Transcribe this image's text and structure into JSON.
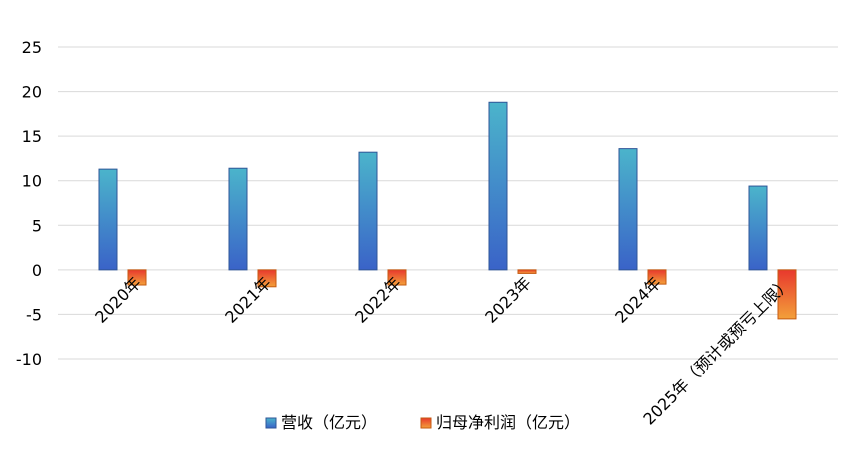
{
  "chart_data": {
    "type": "bar",
    "categories": [
      "2020年",
      "2021年",
      "2022年",
      "2023年",
      "2024年",
      "2025年（预计或预亏上限）"
    ],
    "series": [
      {
        "name": "营收（亿元）",
        "values": [
          11.3,
          11.4,
          13.2,
          18.8,
          13.6,
          9.4
        ],
        "color_top": "#4bb4cb",
        "color_bottom": "#3a63c8",
        "border": "#2f5597"
      },
      {
        "name": "归母净利润（亿元）",
        "values": [
          -1.7,
          -1.9,
          -1.7,
          -0.4,
          -1.6,
          -5.5
        ],
        "color_top": "#e8382d",
        "color_bottom": "#f3a03a",
        "border": "#c55a11"
      }
    ],
    "ylim": [
      -10,
      25
    ],
    "yticks": [
      "25",
      "20",
      "15",
      "10",
      "5",
      "0",
      "-5",
      "-10"
    ],
    "ytick_values": [
      25,
      20,
      15,
      10,
      5,
      0,
      -5,
      -10
    ],
    "grid": true,
    "legend_position": "bottom"
  }
}
